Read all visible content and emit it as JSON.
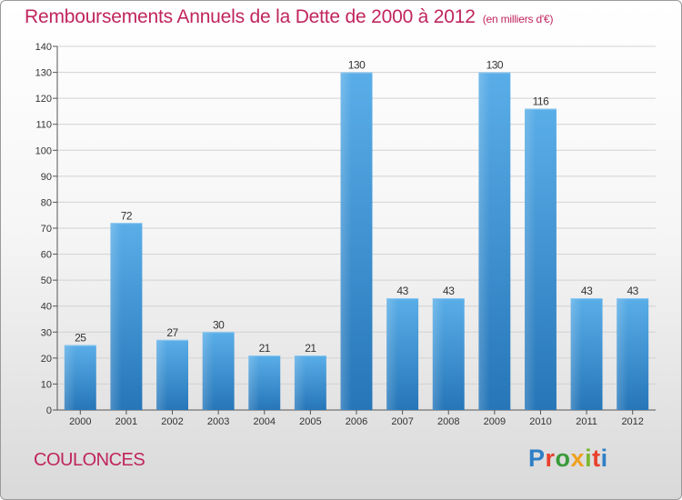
{
  "title": "Remboursements Annuels de la Dette de 2000 à 2012",
  "unit": "(en milliers d'€)",
  "commune": "COULONCES",
  "logo": {
    "text": "Proxiti",
    "colors": [
      "#2f7fc6",
      "#e8412c",
      "#3a9a3a",
      "#f0a020",
      "#7ab830",
      "#e8412c",
      "#2f7fc6"
    ]
  },
  "chart_data": {
    "type": "bar",
    "title": "Remboursements Annuels de la Dette de 2000 à 2012",
    "unit": "(en milliers d'€)",
    "categories": [
      "2000",
      "2001",
      "2002",
      "2003",
      "2004",
      "2005",
      "2006",
      "2007",
      "2008",
      "2009",
      "2010",
      "2011",
      "2012"
    ],
    "values": [
      25,
      72,
      27,
      30,
      21,
      21,
      130,
      43,
      43,
      130,
      116,
      43,
      43
    ],
    "ylim": [
      0,
      140
    ],
    "yticks": [
      0,
      10,
      20,
      30,
      40,
      50,
      60,
      70,
      80,
      90,
      100,
      110,
      120,
      130,
      140
    ],
    "grid": true,
    "bar_color": "#4d9fdf",
    "bar_color_dark": "#2676b8"
  }
}
